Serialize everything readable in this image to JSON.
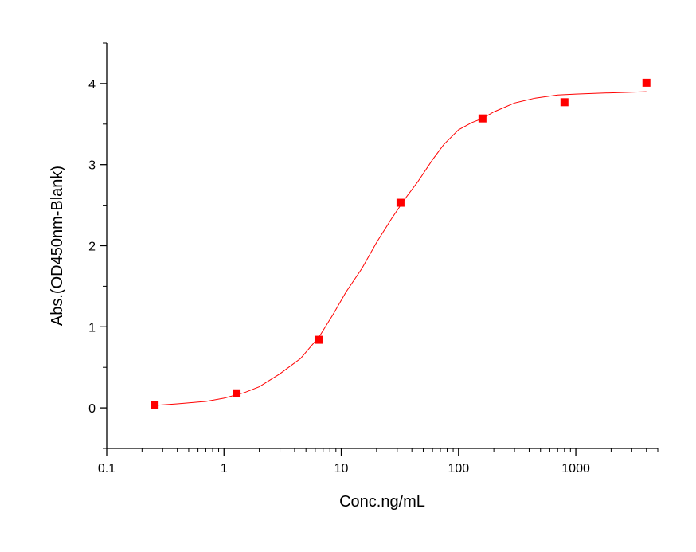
{
  "chart_data": {
    "type": "scatter",
    "title": "",
    "xlabel": "Conc.ng/mL",
    "ylabel": "Abs.(OD450nm-Blank)",
    "xscale": "log",
    "xlim": [
      0.1,
      5000
    ],
    "ylim": [
      -0.5,
      4.5
    ],
    "xticks": [
      {
        "value": 0.1,
        "label": "0.1"
      },
      {
        "value": 1,
        "label": "1"
      },
      {
        "value": 10,
        "label": "10"
      },
      {
        "value": 100,
        "label": "100"
      },
      {
        "value": 1000,
        "label": "1000"
      }
    ],
    "yticks": [
      {
        "value": 0,
        "label": "0"
      },
      {
        "value": 1,
        "label": "1"
      },
      {
        "value": 2,
        "label": "2"
      },
      {
        "value": 3,
        "label": "3"
      },
      {
        "value": 4,
        "label": "4"
      }
    ],
    "grid": false,
    "legend": "none",
    "series": [
      {
        "marker": "square",
        "color": "#ff0000",
        "x": [
          0.256,
          1.28,
          6.4,
          32,
          160,
          800,
          4000
        ],
        "y": [
          0.04,
          0.18,
          0.84,
          2.53,
          3.57,
          3.77,
          4.01
        ]
      }
    ],
    "fit_curve": {
      "color": "#ff0000",
      "x": [
        0.256,
        0.4,
        0.7,
        1.0,
        1.5,
        2.0,
        3.0,
        4.5,
        6.5,
        8.5,
        11,
        15,
        20,
        27,
        35,
        45,
        60,
        75,
        100,
        130,
        160,
        200,
        300,
        450,
        700,
        1000,
        1500,
        2500,
        4000
      ],
      "y": [
        0.03,
        0.05,
        0.08,
        0.12,
        0.19,
        0.26,
        0.42,
        0.61,
        0.88,
        1.15,
        1.43,
        1.72,
        2.04,
        2.34,
        2.58,
        2.79,
        3.06,
        3.25,
        3.43,
        3.52,
        3.57,
        3.65,
        3.76,
        3.82,
        3.86,
        3.87,
        3.88,
        3.89,
        3.9
      ]
    }
  }
}
